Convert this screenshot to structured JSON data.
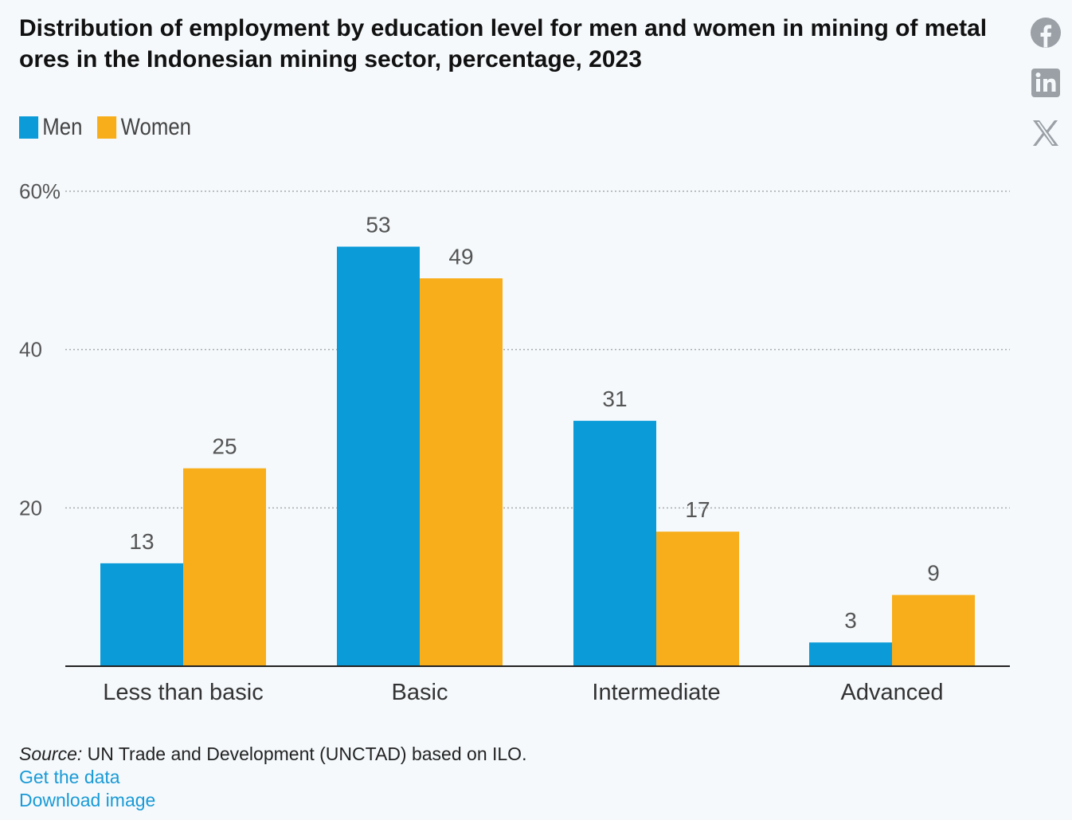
{
  "header": {
    "title": "Distribution of employment by education level for men and women in mining of metal ores in the Indonesian mining sector, percentage, 2023"
  },
  "share": {
    "facebook": "facebook-icon",
    "linkedin": "linkedin-icon",
    "x": "x-icon",
    "icon_color": "#9aa0a6"
  },
  "colors": {
    "men": "#0b9bd8",
    "women": "#f8ae1a",
    "axis": "#222222",
    "grid": "#aaaaaa",
    "tick_text": "#555555",
    "link": "#1a9ad6"
  },
  "chart_data": {
    "type": "bar",
    "title": "Distribution of employment by education level for men and women in mining of metal ores in the Indonesian mining sector, percentage, 2023",
    "categories": [
      "Less than basic",
      "Basic",
      "Intermediate",
      "Advanced"
    ],
    "series": [
      {
        "name": "Men",
        "values": [
          13,
          53,
          31,
          3
        ]
      },
      {
        "name": "Women",
        "values": [
          25,
          49,
          17,
          9
        ]
      }
    ],
    "yticks": [
      {
        "value": 20,
        "label": "20"
      },
      {
        "value": 40,
        "label": "40"
      },
      {
        "value": 60,
        "label": "60%"
      }
    ],
    "ylim": [
      0,
      60
    ],
    "xlabel": "",
    "ylabel": "",
    "grid": true,
    "legend_position": "top-left"
  },
  "footer": {
    "source_label": "Source:",
    "source_text": " UN Trade and Development (UNCTAD) based on ILO.",
    "get_data": "Get the data",
    "download": "Download image"
  }
}
